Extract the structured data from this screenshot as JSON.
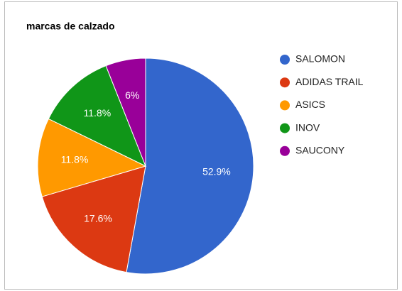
{
  "chart_data": {
    "type": "pie",
    "title": "marcas de calzado",
    "categories": [
      "SALOMON",
      "ADIDAS TRAIL",
      "ASICS",
      "INOV",
      "SAUCONY"
    ],
    "values": [
      52.9,
      17.6,
      11.8,
      11.8,
      6
    ],
    "value_labels": [
      "52.9%",
      "17.6%",
      "11.8%",
      "11.8%",
      "6%"
    ],
    "colors": [
      "#3366cc",
      "#dc3912",
      "#ff9900",
      "#109618",
      "#990099"
    ],
    "legend": "right"
  }
}
